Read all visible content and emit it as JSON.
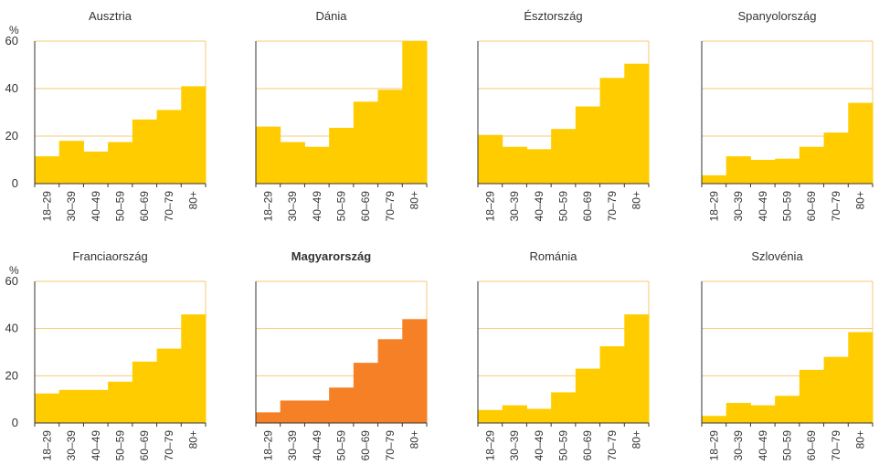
{
  "y_unit_label": "%",
  "colors": {
    "default_bar": "#FFCC00",
    "highlight_bar": "#F58025",
    "gridline": "#F5C97A",
    "axis": "#333333",
    "text": "#333333"
  },
  "chart_data": [
    {
      "type": "bar",
      "title": "Ausztria",
      "categories": [
        "18–29",
        "30–39",
        "40–49",
        "50–59",
        "60–69",
        "70–79",
        "80+"
      ],
      "values": [
        11.5,
        18,
        13.5,
        17.5,
        27,
        31,
        41
      ],
      "ylim": [
        0,
        60
      ],
      "yticks": [
        0,
        20,
        40,
        60
      ],
      "grid": true,
      "highlight": false
    },
    {
      "type": "bar",
      "title": "Dánia",
      "categories": [
        "18–29",
        "30–39",
        "40–49",
        "50–59",
        "60–69",
        "70–79",
        "80+"
      ],
      "values": [
        24,
        17.5,
        15.5,
        23.5,
        34.5,
        39.5,
        60
      ],
      "ylim": [
        0,
        60
      ],
      "yticks": [
        0,
        20,
        40,
        60
      ],
      "grid": true,
      "highlight": false
    },
    {
      "type": "bar",
      "title": "Észtország",
      "categories": [
        "18–29",
        "30–39",
        "40–49",
        "50–59",
        "60–69",
        "70–79",
        "80+"
      ],
      "values": [
        20.5,
        15.5,
        14.5,
        23,
        32.5,
        44.5,
        50.5
      ],
      "ylim": [
        0,
        60
      ],
      "yticks": [
        0,
        20,
        40,
        60
      ],
      "grid": true,
      "highlight": false
    },
    {
      "type": "bar",
      "title": "Spanyolország",
      "categories": [
        "18–29",
        "30–39",
        "40–49",
        "50–59",
        "60–69",
        "70–79",
        "80+"
      ],
      "values": [
        3.5,
        11.5,
        10,
        10.5,
        15.5,
        21.5,
        34
      ],
      "ylim": [
        0,
        60
      ],
      "yticks": [
        0,
        20,
        40,
        60
      ],
      "grid": true,
      "highlight": false
    },
    {
      "type": "bar",
      "title": "Franciaország",
      "categories": [
        "18–29",
        "30–39",
        "40–49",
        "50–59",
        "60–69",
        "70–79",
        "80+"
      ],
      "values": [
        12.5,
        14,
        14,
        17.5,
        26,
        31.5,
        46
      ],
      "ylim": [
        0,
        60
      ],
      "yticks": [
        0,
        20,
        40,
        60
      ],
      "grid": true,
      "highlight": false
    },
    {
      "type": "bar",
      "title": "Magyarország",
      "categories": [
        "18–29",
        "30–39",
        "40–49",
        "50–59",
        "60–69",
        "70–79",
        "80+"
      ],
      "values": [
        4.5,
        9.5,
        9.5,
        15,
        25.5,
        35.5,
        44
      ],
      "ylim": [
        0,
        60
      ],
      "yticks": [
        0,
        20,
        40,
        60
      ],
      "grid": true,
      "highlight": true
    },
    {
      "type": "bar",
      "title": "Románia",
      "categories": [
        "18–29",
        "30–39",
        "40–49",
        "50–59",
        "60–69",
        "70–79",
        "80+"
      ],
      "values": [
        5.5,
        7.5,
        6,
        13,
        23,
        32.5,
        46
      ],
      "ylim": [
        0,
        60
      ],
      "yticks": [
        0,
        20,
        40,
        60
      ],
      "grid": true,
      "highlight": false
    },
    {
      "type": "bar",
      "title": "Szlovénia",
      "categories": [
        "18–29",
        "30–39",
        "40–49",
        "50–59",
        "60–69",
        "70–79",
        "80+"
      ],
      "values": [
        3,
        8.5,
        7.5,
        11.5,
        22.5,
        28,
        38.5
      ],
      "ylim": [
        0,
        60
      ],
      "yticks": [
        0,
        20,
        40,
        60
      ],
      "grid": true,
      "highlight": false
    }
  ]
}
